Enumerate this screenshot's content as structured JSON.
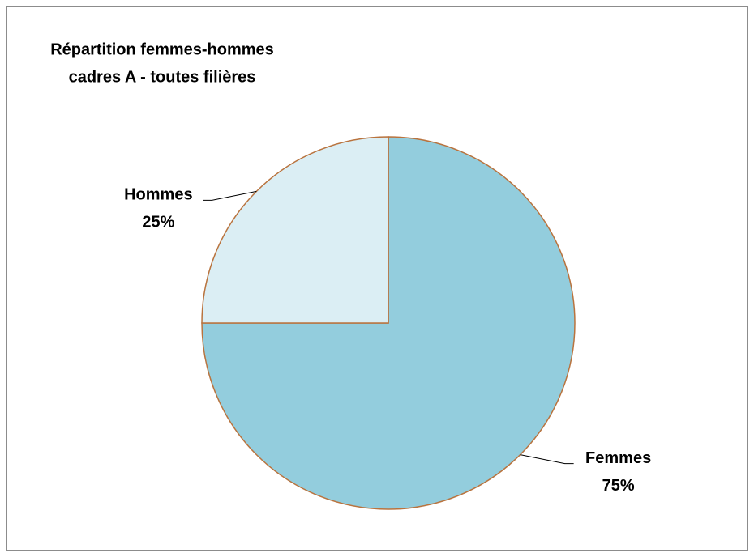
{
  "chart_data": {
    "type": "pie",
    "title": [
      "Répartition femmes-hommes",
      "cadres A - toutes filières"
    ],
    "categories": [
      "Femmes",
      "Hommes"
    ],
    "values": [
      75,
      25
    ],
    "value_labels": [
      "75%",
      "25%"
    ],
    "colors": [
      "#93cddd",
      "#dbeef4"
    ],
    "edge_color": "#b9733e"
  }
}
